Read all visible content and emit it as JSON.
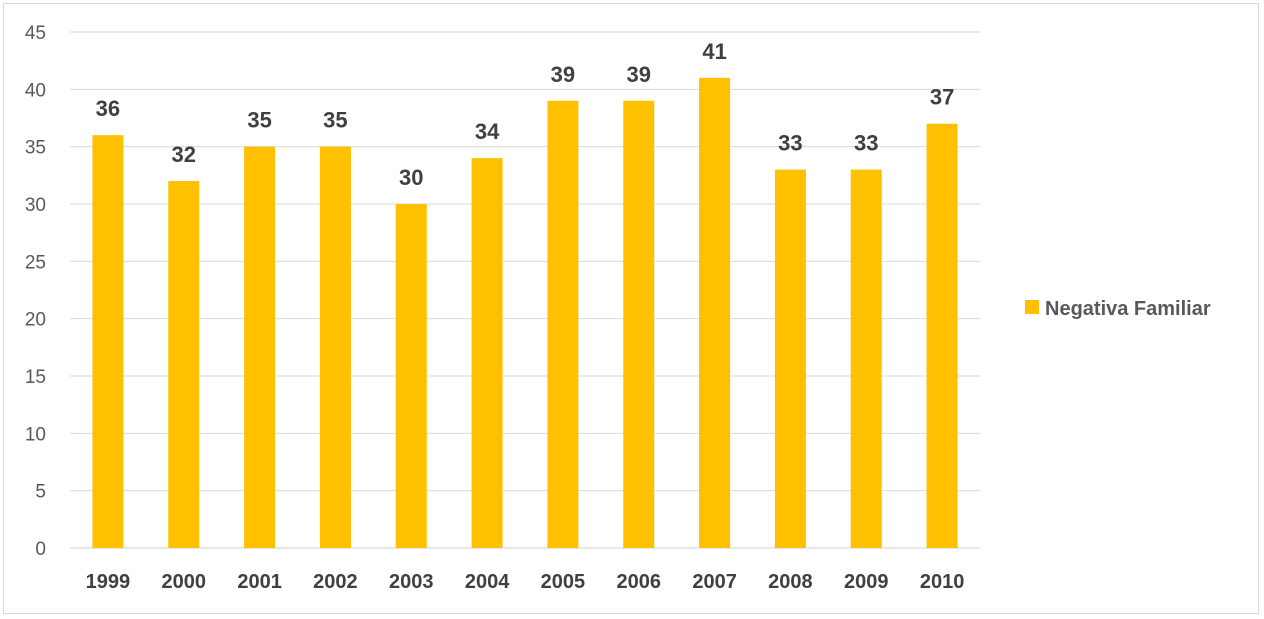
{
  "chart_data": {
    "type": "bar",
    "categories": [
      "1999",
      "2000",
      "2001",
      "2002",
      "2003",
      "2004",
      "2005",
      "2006",
      "2007",
      "2008",
      "2009",
      "2010"
    ],
    "series": [
      {
        "name": "Negativa Familiar",
        "values": [
          36,
          32,
          35,
          35,
          30,
          34,
          39,
          39,
          41,
          33,
          33,
          37
        ],
        "color": "#FFC000"
      }
    ],
    "ylim": [
      0,
      45
    ],
    "yticks": [
      0,
      5,
      10,
      15,
      20,
      25,
      30,
      35,
      40,
      45
    ],
    "grid": true,
    "legend": "right",
    "data_labels": true
  }
}
